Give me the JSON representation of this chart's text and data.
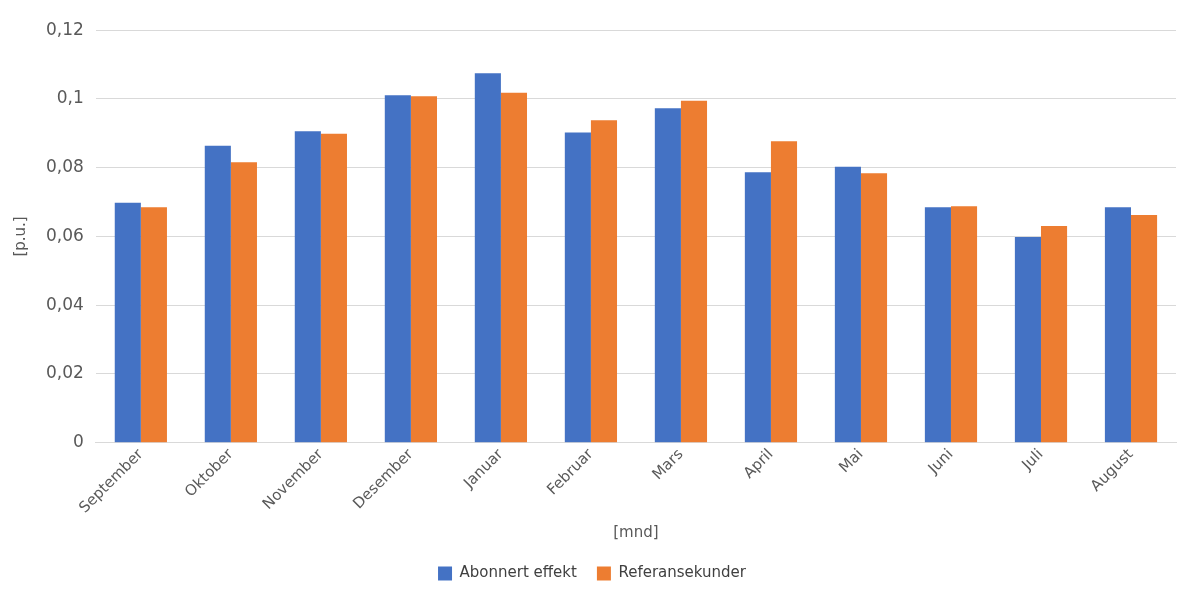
{
  "chart_data": {
    "type": "bar",
    "xlabel": "[mnd]",
    "ylabel": "[p.u.]",
    "categories": [
      "September",
      "Oktober",
      "November",
      "Desember",
      "Januar",
      "Februar",
      "Mars",
      "April",
      "Mai",
      "Juni",
      "Juli",
      "August"
    ],
    "series": [
      {
        "name": "Abonnert effekt",
        "color": "#4472c4",
        "values": [
          0.0698,
          0.0864,
          0.0906,
          0.1011,
          0.1075,
          0.0902,
          0.0973,
          0.0787,
          0.0803,
          0.0685,
          0.0598,
          0.0685
        ]
      },
      {
        "name": "Referansekunder",
        "color": "#ed7d31",
        "values": [
          0.0685,
          0.0816,
          0.0899,
          0.1008,
          0.1018,
          0.0938,
          0.0995,
          0.0877,
          0.0784,
          0.0688,
          0.063,
          0.0662
        ]
      }
    ],
    "ylim": [
      0,
      0.12
    ],
    "yticks": [
      {
        "value": 0,
        "label": "0"
      },
      {
        "value": 0.02,
        "label": "0,02"
      },
      {
        "value": 0.04,
        "label": "0,04"
      },
      {
        "value": 0.06,
        "label": "0,06"
      },
      {
        "value": 0.08,
        "label": "0,08"
      },
      {
        "value": 0.1,
        "label": "0,1"
      },
      {
        "value": 0.12,
        "label": "0,12"
      }
    ],
    "grid": "y",
    "legend": "bottom"
  }
}
